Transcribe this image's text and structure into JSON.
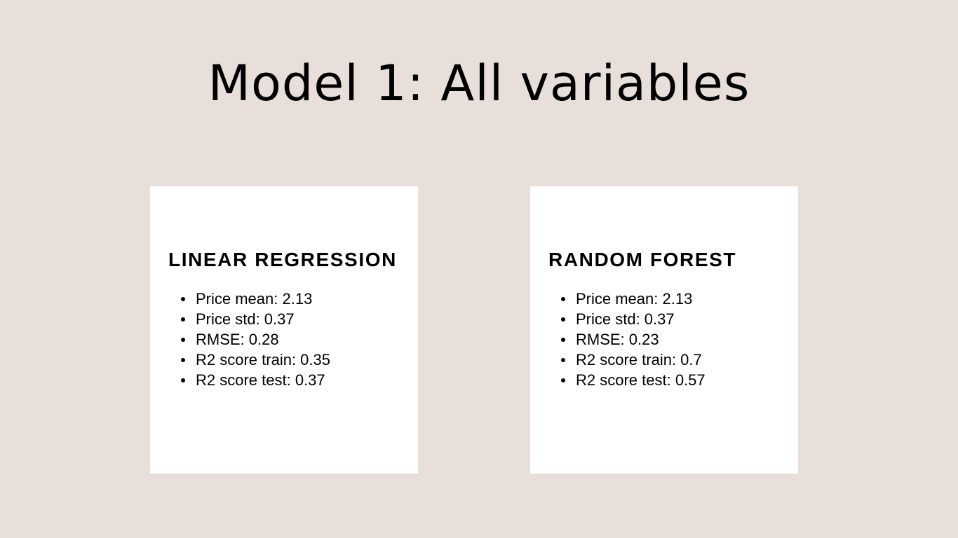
{
  "slide": {
    "title": "Model 1: All variables"
  },
  "cards": [
    {
      "heading": "LINEAR REGRESSION",
      "metrics": [
        "Price mean: 2.13",
        "Price std: 0.37",
        "RMSE: 0.28",
        "R2 score train: 0.35",
        "R2 score test: 0.37"
      ]
    },
    {
      "heading": "RANDOM FOREST",
      "metrics": [
        "Price mean: 2.13",
        "Price std: 0.37",
        "RMSE: 0.23",
        "R2 score train: 0.7",
        "R2 score test: 0.57"
      ]
    }
  ],
  "colors": {
    "background": "#e8dfda",
    "card": "#ffffff",
    "text": "#000000"
  }
}
